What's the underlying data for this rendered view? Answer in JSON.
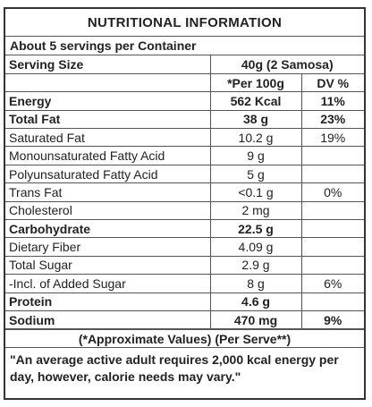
{
  "label": {
    "title": "NUTRITIONAL INFORMATION",
    "servings_per_container": "About 5 servings per Container",
    "serving_size_label": "Serving Size",
    "serving_size_value": "40g (2 Samosa)",
    "column_headers": {
      "per_100g": "*Per 100g",
      "dv": "DV %"
    },
    "rows": [
      {
        "name": "Energy",
        "amount": "562 Kcal",
        "dv": "11%",
        "bold": true
      },
      {
        "name": "Total Fat",
        "amount": "38 g",
        "dv": "23%",
        "bold": true
      },
      {
        "name": "Saturated Fat",
        "amount": "10.2 g",
        "dv": "19%",
        "bold": false
      },
      {
        "name": "Monounsaturated Fatty Acid",
        "amount": "9 g",
        "dv": "",
        "bold": false
      },
      {
        "name": "Polyunsaturated Fatty Acid",
        "amount": "5 g",
        "dv": "",
        "bold": false
      },
      {
        "name": "Trans Fat",
        "amount": "<0.1 g",
        "dv": "0%",
        "bold": false
      },
      {
        "name": "Cholesterol",
        "amount": "2 mg",
        "dv": "",
        "bold": false
      },
      {
        "name": "Carbohydrate",
        "amount": "22.5 g",
        "dv": "",
        "bold": true
      },
      {
        "name": "Dietary Fiber",
        "amount": "4.09 g",
        "dv": "",
        "bold": false
      },
      {
        "name": "Total Sugar",
        "amount": "2.9 g",
        "dv": "",
        "bold": false
      },
      {
        "name": "-Incl. of Added Sugar",
        "amount": "8 g",
        "dv": "6%",
        "bold": false
      },
      {
        "name": "Protein",
        "amount": "4.6 g",
        "dv": "",
        "bold": true
      },
      {
        "name": "Sodium",
        "amount": "470 mg",
        "dv": "9%",
        "bold": true
      }
    ],
    "approx_note": "(*Approximate Values) (Per Serve**)",
    "footnote": "\"An average active adult requires 2,000 kcal energy per day, however, calorie needs may vary.\""
  }
}
